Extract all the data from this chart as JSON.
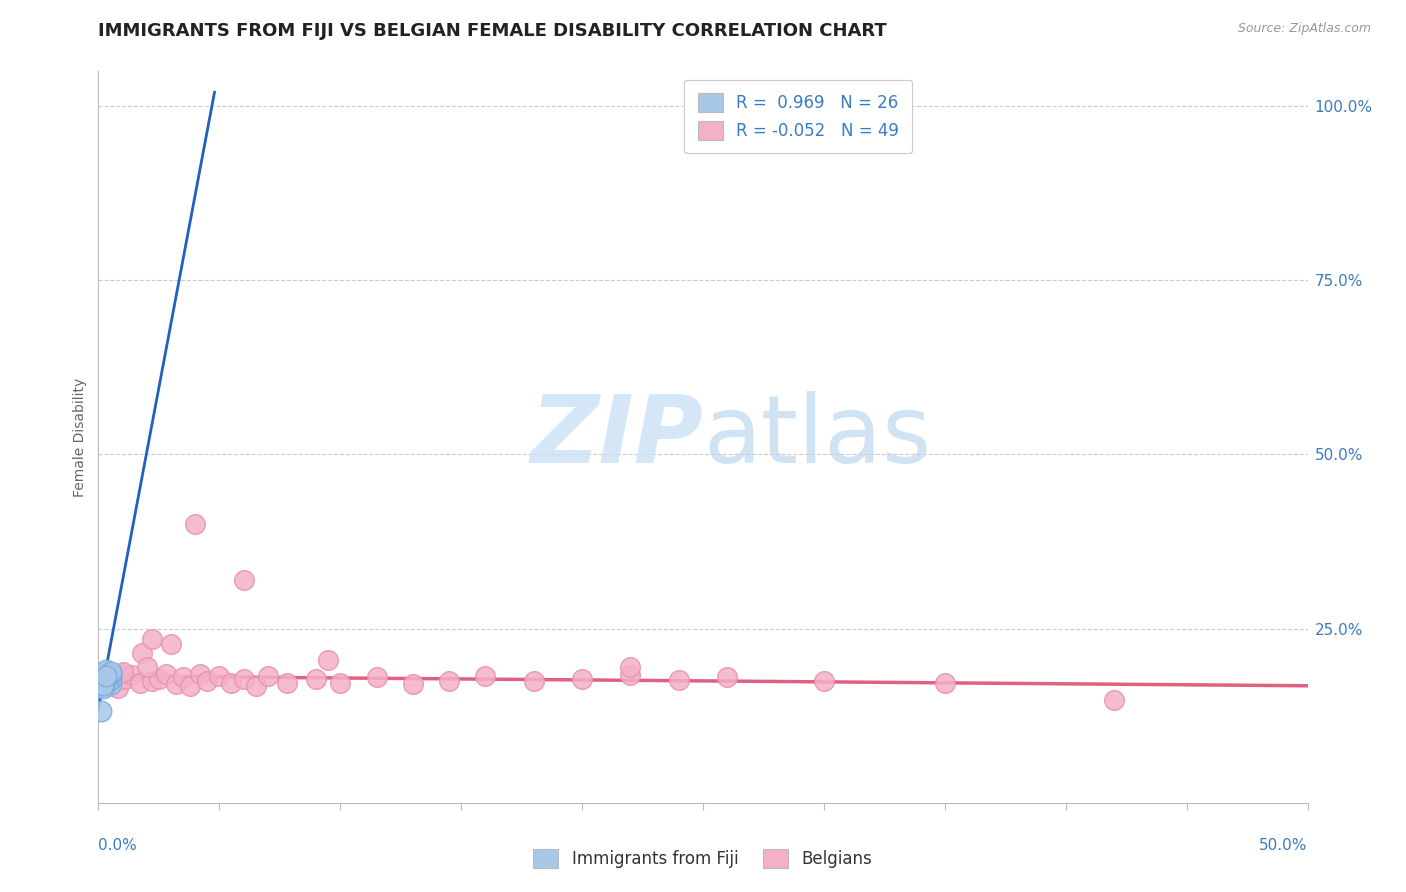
{
  "title": "IMMIGRANTS FROM FIJI VS BELGIAN FEMALE DISABILITY CORRELATION CHART",
  "source": "Source: ZipAtlas.com",
  "ylabel": "Female Disability",
  "xmin": 0.0,
  "xmax": 0.5,
  "ymin": 0.0,
  "ymax": 1.05,
  "yticks": [
    0.0,
    0.25,
    0.5,
    0.75,
    1.0
  ],
  "ytick_labels": [
    "",
    "25.0%",
    "50.0%",
    "75.0%",
    "100.0%"
  ],
  "grid_color": "#cccccc",
  "watermark_zip": "ZIP",
  "watermark_atlas": "atlas",
  "fiji_color": "#a8c8e8",
  "belgian_color": "#f4b0c8",
  "fiji_edge_color": "#7aabdc",
  "belgian_edge_color": "#e890a8",
  "fiji_line_color": "#2060c0",
  "belgian_line_color": "#e06080",
  "fiji_scatter": [
    [
      0.002,
      0.185
    ],
    [
      0.003,
      0.175
    ],
    [
      0.004,
      0.182
    ],
    [
      0.002,
      0.178
    ],
    [
      0.003,
      0.172
    ],
    [
      0.004,
      0.18
    ],
    [
      0.005,
      0.17
    ],
    [
      0.003,
      0.188
    ],
    [
      0.002,
      0.176
    ],
    [
      0.004,
      0.183
    ],
    [
      0.005,
      0.178
    ],
    [
      0.003,
      0.19
    ],
    [
      0.002,
      0.168
    ],
    [
      0.004,
      0.174
    ],
    [
      0.003,
      0.18
    ],
    [
      0.005,
      0.185
    ],
    [
      0.002,
      0.172
    ],
    [
      0.003,
      0.176
    ],
    [
      0.004,
      0.184
    ],
    [
      0.002,
      0.165
    ],
    [
      0.003,
      0.18
    ],
    [
      0.004,
      0.184
    ],
    [
      0.005,
      0.188
    ],
    [
      0.002,
      0.169
    ],
    [
      0.003,
      0.182
    ],
    [
      0.001,
      0.132
    ]
  ],
  "belgian_scatter": [
    [
      0.002,
      0.178
    ],
    [
      0.003,
      0.172
    ],
    [
      0.004,
      0.168
    ],
    [
      0.005,
      0.183
    ],
    [
      0.006,
      0.175
    ],
    [
      0.007,
      0.18
    ],
    [
      0.008,
      0.165
    ],
    [
      0.009,
      0.185
    ],
    [
      0.011,
      0.178
    ],
    [
      0.014,
      0.183
    ],
    [
      0.017,
      0.172
    ],
    [
      0.01,
      0.188
    ],
    [
      0.022,
      0.175
    ],
    [
      0.025,
      0.178
    ],
    [
      0.028,
      0.185
    ],
    [
      0.032,
      0.17
    ],
    [
      0.035,
      0.18
    ],
    [
      0.038,
      0.168
    ],
    [
      0.042,
      0.185
    ],
    [
      0.045,
      0.175
    ],
    [
      0.05,
      0.182
    ],
    [
      0.055,
      0.172
    ],
    [
      0.06,
      0.178
    ],
    [
      0.065,
      0.168
    ],
    [
      0.07,
      0.182
    ],
    [
      0.078,
      0.172
    ],
    [
      0.09,
      0.178
    ],
    [
      0.1,
      0.172
    ],
    [
      0.115,
      0.18
    ],
    [
      0.13,
      0.17
    ],
    [
      0.145,
      0.175
    ],
    [
      0.16,
      0.182
    ],
    [
      0.18,
      0.175
    ],
    [
      0.2,
      0.178
    ],
    [
      0.22,
      0.183
    ],
    [
      0.24,
      0.176
    ],
    [
      0.26,
      0.18
    ],
    [
      0.3,
      0.175
    ],
    [
      0.35,
      0.172
    ],
    [
      0.018,
      0.215
    ],
    [
      0.022,
      0.235
    ],
    [
      0.03,
      0.228
    ],
    [
      0.04,
      0.4
    ],
    [
      0.06,
      0.32
    ],
    [
      0.095,
      0.205
    ],
    [
      0.22,
      0.195
    ],
    [
      0.02,
      0.195
    ],
    [
      0.42,
      0.148
    ]
  ],
  "fiji_trend_x": [
    0.0,
    0.048
  ],
  "fiji_trend_y": [
    0.135,
    1.02
  ],
  "belgian_trend_x": [
    0.0,
    0.5
  ],
  "belgian_trend_y": [
    0.182,
    0.168
  ]
}
